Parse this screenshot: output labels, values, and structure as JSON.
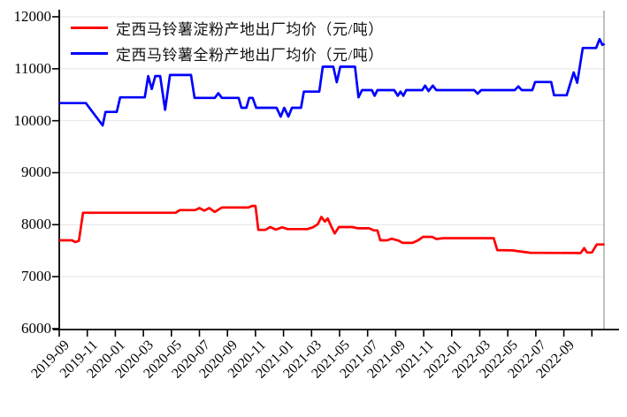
{
  "colors": {
    "starch_line": "#ff0000",
    "whole_powder_line": "#0000ff",
    "axis": "#000000",
    "grid": "#e4e4e4",
    "right_border": "#a6a6a6",
    "text": "#000000"
  },
  "legend": {
    "items": [
      {
        "label": "定西马铃薯淀粉产地出厂均价（元/吨）",
        "color": "#ff0000"
      },
      {
        "label": "定西马铃薯全粉产地出厂均价（元/吨）",
        "color": "#0000ff"
      }
    ]
  },
  "chart_data": {
    "type": "line",
    "title": "",
    "xlabel": "",
    "ylabel": "",
    "ylim": [
      6000,
      12000
    ],
    "y_ticks": [
      6000,
      7000,
      8000,
      9000,
      10000,
      11000,
      12000
    ],
    "x_unit": "months since 2019-09",
    "xlim_months": [
      0,
      38.9
    ],
    "x_tick_labels": [
      "2019-09",
      "2019-11",
      "2020-01",
      "2020-03",
      "2020-05",
      "2020-07",
      "2020-09",
      "2020-11",
      "2021-01",
      "2021-03",
      "2021-05",
      "2021-07",
      "2021-09",
      "2021-11",
      "2022-01",
      "2022-03",
      "2022-05",
      "2022-07",
      "2022-09"
    ],
    "x_tick_months": [
      0,
      2,
      4,
      6,
      8,
      10,
      12,
      14,
      16,
      18,
      20,
      22,
      24,
      26,
      28,
      30,
      32,
      34,
      36
    ],
    "unlabeled_x_tick_months": [
      38
    ],
    "grid": "horizontal-light",
    "legend_position": "top-left-inside",
    "series": [
      {
        "name": "定西马铃薯淀粉产地出厂均价（元/吨）",
        "color": "#ff0000",
        "points": [
          [
            0,
            7700
          ],
          [
            0.9,
            7700
          ],
          [
            1.15,
            7665
          ],
          [
            1.4,
            7690
          ],
          [
            1.7,
            8230
          ],
          [
            8.3,
            8230
          ],
          [
            8.6,
            8280
          ],
          [
            9.7,
            8280
          ],
          [
            10.0,
            8320
          ],
          [
            10.35,
            8270
          ],
          [
            10.7,
            8320
          ],
          [
            11.1,
            8245
          ],
          [
            11.6,
            8330
          ],
          [
            13.5,
            8330
          ],
          [
            13.75,
            8360
          ],
          [
            14.0,
            8360
          ],
          [
            14.2,
            7900
          ],
          [
            14.7,
            7900
          ],
          [
            15.05,
            7955
          ],
          [
            15.45,
            7905
          ],
          [
            15.9,
            7950
          ],
          [
            16.3,
            7915
          ],
          [
            17.7,
            7915
          ],
          [
            18.1,
            7950
          ],
          [
            18.45,
            8010
          ],
          [
            18.7,
            8150
          ],
          [
            18.95,
            8060
          ],
          [
            19.15,
            8120
          ],
          [
            19.45,
            7940
          ],
          [
            19.65,
            7830
          ],
          [
            19.95,
            7955
          ],
          [
            20.9,
            7955
          ],
          [
            21.3,
            7930
          ],
          [
            22.1,
            7930
          ],
          [
            22.45,
            7890
          ],
          [
            22.7,
            7890
          ],
          [
            22.9,
            7700
          ],
          [
            23.4,
            7700
          ],
          [
            23.7,
            7730
          ],
          [
            24.2,
            7695
          ],
          [
            24.5,
            7650
          ],
          [
            25.2,
            7650
          ],
          [
            25.6,
            7700
          ],
          [
            25.95,
            7765
          ],
          [
            26.6,
            7765
          ],
          [
            26.9,
            7725
          ],
          [
            27.4,
            7740
          ],
          [
            31.0,
            7740
          ],
          [
            31.25,
            7510
          ],
          [
            32.3,
            7505
          ],
          [
            33.0,
            7480
          ],
          [
            33.6,
            7460
          ],
          [
            37.2,
            7455
          ],
          [
            37.45,
            7550
          ],
          [
            37.65,
            7465
          ],
          [
            38.0,
            7465
          ],
          [
            38.35,
            7620
          ],
          [
            38.9,
            7620
          ]
        ]
      },
      {
        "name": "定西马铃薯全粉产地出厂均价（元/吨）",
        "color": "#0000ff",
        "points": [
          [
            0,
            10340
          ],
          [
            1.9,
            10340
          ],
          [
            3.1,
            9910
          ],
          [
            3.3,
            10170
          ],
          [
            4.1,
            10170
          ],
          [
            4.35,
            10450
          ],
          [
            6.1,
            10450
          ],
          [
            6.35,
            10860
          ],
          [
            6.6,
            10610
          ],
          [
            6.85,
            10860
          ],
          [
            7.2,
            10860
          ],
          [
            7.55,
            10210
          ],
          [
            7.9,
            10880
          ],
          [
            9.4,
            10880
          ],
          [
            9.65,
            10440
          ],
          [
            11.1,
            10440
          ],
          [
            11.35,
            10530
          ],
          [
            11.6,
            10440
          ],
          [
            12.8,
            10440
          ],
          [
            13.0,
            10250
          ],
          [
            13.35,
            10250
          ],
          [
            13.55,
            10440
          ],
          [
            13.8,
            10440
          ],
          [
            14.05,
            10250
          ],
          [
            15.5,
            10250
          ],
          [
            15.8,
            10080
          ],
          [
            16.05,
            10250
          ],
          [
            16.35,
            10080
          ],
          [
            16.6,
            10250
          ],
          [
            17.25,
            10250
          ],
          [
            17.45,
            10560
          ],
          [
            18.55,
            10560
          ],
          [
            18.8,
            11040
          ],
          [
            19.55,
            11040
          ],
          [
            19.8,
            10740
          ],
          [
            20.05,
            11040
          ],
          [
            21.1,
            11040
          ],
          [
            21.35,
            10450
          ],
          [
            21.6,
            10590
          ],
          [
            22.3,
            10590
          ],
          [
            22.5,
            10480
          ],
          [
            22.7,
            10590
          ],
          [
            23.9,
            10590
          ],
          [
            24.15,
            10480
          ],
          [
            24.35,
            10560
          ],
          [
            24.55,
            10480
          ],
          [
            24.75,
            10590
          ],
          [
            25.9,
            10590
          ],
          [
            26.1,
            10675
          ],
          [
            26.35,
            10570
          ],
          [
            26.65,
            10675
          ],
          [
            26.9,
            10590
          ],
          [
            29.6,
            10590
          ],
          [
            29.85,
            10520
          ],
          [
            30.1,
            10590
          ],
          [
            32.5,
            10590
          ],
          [
            32.75,
            10660
          ],
          [
            33.0,
            10590
          ],
          [
            33.75,
            10590
          ],
          [
            33.95,
            10745
          ],
          [
            35.1,
            10745
          ],
          [
            35.3,
            10490
          ],
          [
            36.2,
            10490
          ],
          [
            36.7,
            10930
          ],
          [
            36.95,
            10730
          ],
          [
            37.35,
            11400
          ],
          [
            38.3,
            11400
          ],
          [
            38.55,
            11570
          ],
          [
            38.75,
            11460
          ],
          [
            38.9,
            11480
          ]
        ]
      }
    ]
  }
}
